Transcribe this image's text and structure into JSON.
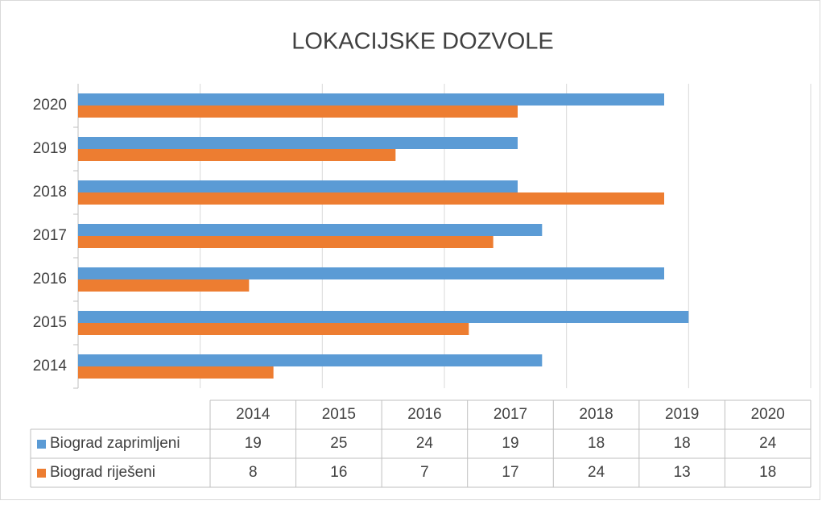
{
  "chart_data": {
    "type": "hbar",
    "title": "LOKACIJSKE DOZVOLE",
    "categories": [
      "2014",
      "2015",
      "2016",
      "2017",
      "2018",
      "2019",
      "2020"
    ],
    "series": [
      {
        "name": "Biograd zaprimljeni",
        "color": "#5b9bd5",
        "values": [
          19,
          25,
          24,
          19,
          18,
          18,
          24
        ]
      },
      {
        "name": "Biograd riješeni",
        "color": "#ed7d31",
        "values": [
          8,
          16,
          7,
          17,
          24,
          13,
          18
        ]
      }
    ],
    "xlim": [
      0,
      30
    ],
    "xticks": [
      0,
      5,
      10,
      15,
      20,
      25,
      30
    ],
    "grid": true,
    "data_table": true
  }
}
